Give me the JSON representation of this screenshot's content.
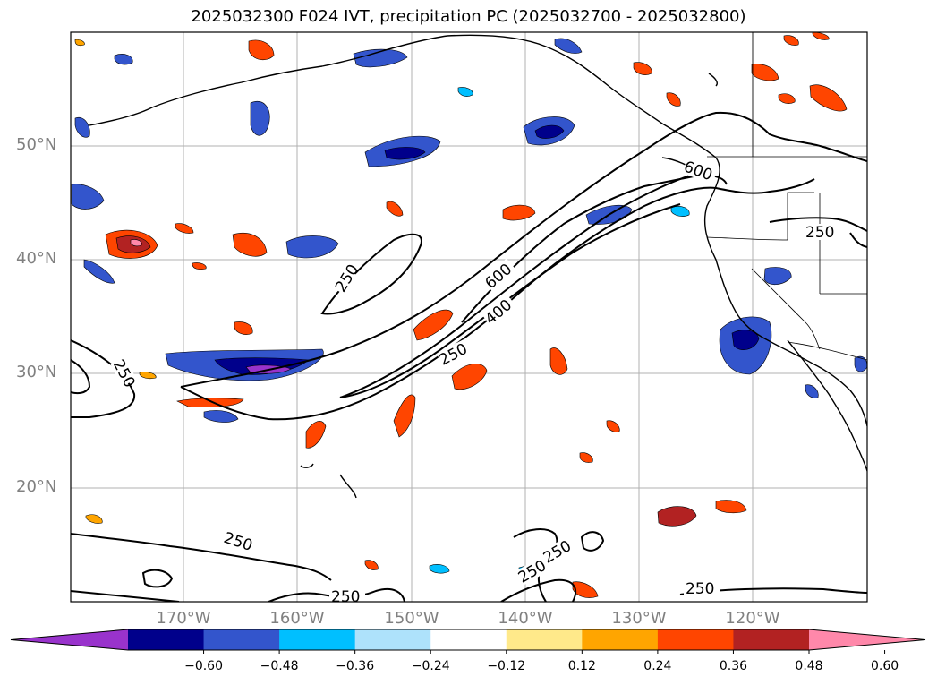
{
  "title": "2025032300 F024 IVT, precipitation PC (2025032700 - 2025032800)",
  "lat_labels": [
    "50°N",
    "40°N",
    "30°N",
    "20°N"
  ],
  "lon_labels": [
    "170°W",
    "160°W",
    "150°W",
    "140°W",
    "130°W",
    "120°W"
  ],
  "colorbar": {
    "ticks": [
      "−0.60",
      "−0.48",
      "−0.36",
      "−0.24",
      "−0.12",
      "0.12",
      "0.24",
      "0.36",
      "0.48",
      "0.60"
    ],
    "colors": [
      "#9933cc",
      "#00008b",
      "#3355cc",
      "#00bfff",
      "#aee2fb",
      "#ffffff",
      "#ffe98a",
      "#ffa500",
      "#ff4500",
      "#b22222",
      "#ff88aa"
    ]
  },
  "ivt_contour_labels": [
    "250",
    "250",
    "250",
    "250",
    "250",
    "250",
    "250",
    "250",
    "250",
    "400",
    "600",
    "600"
  ]
}
